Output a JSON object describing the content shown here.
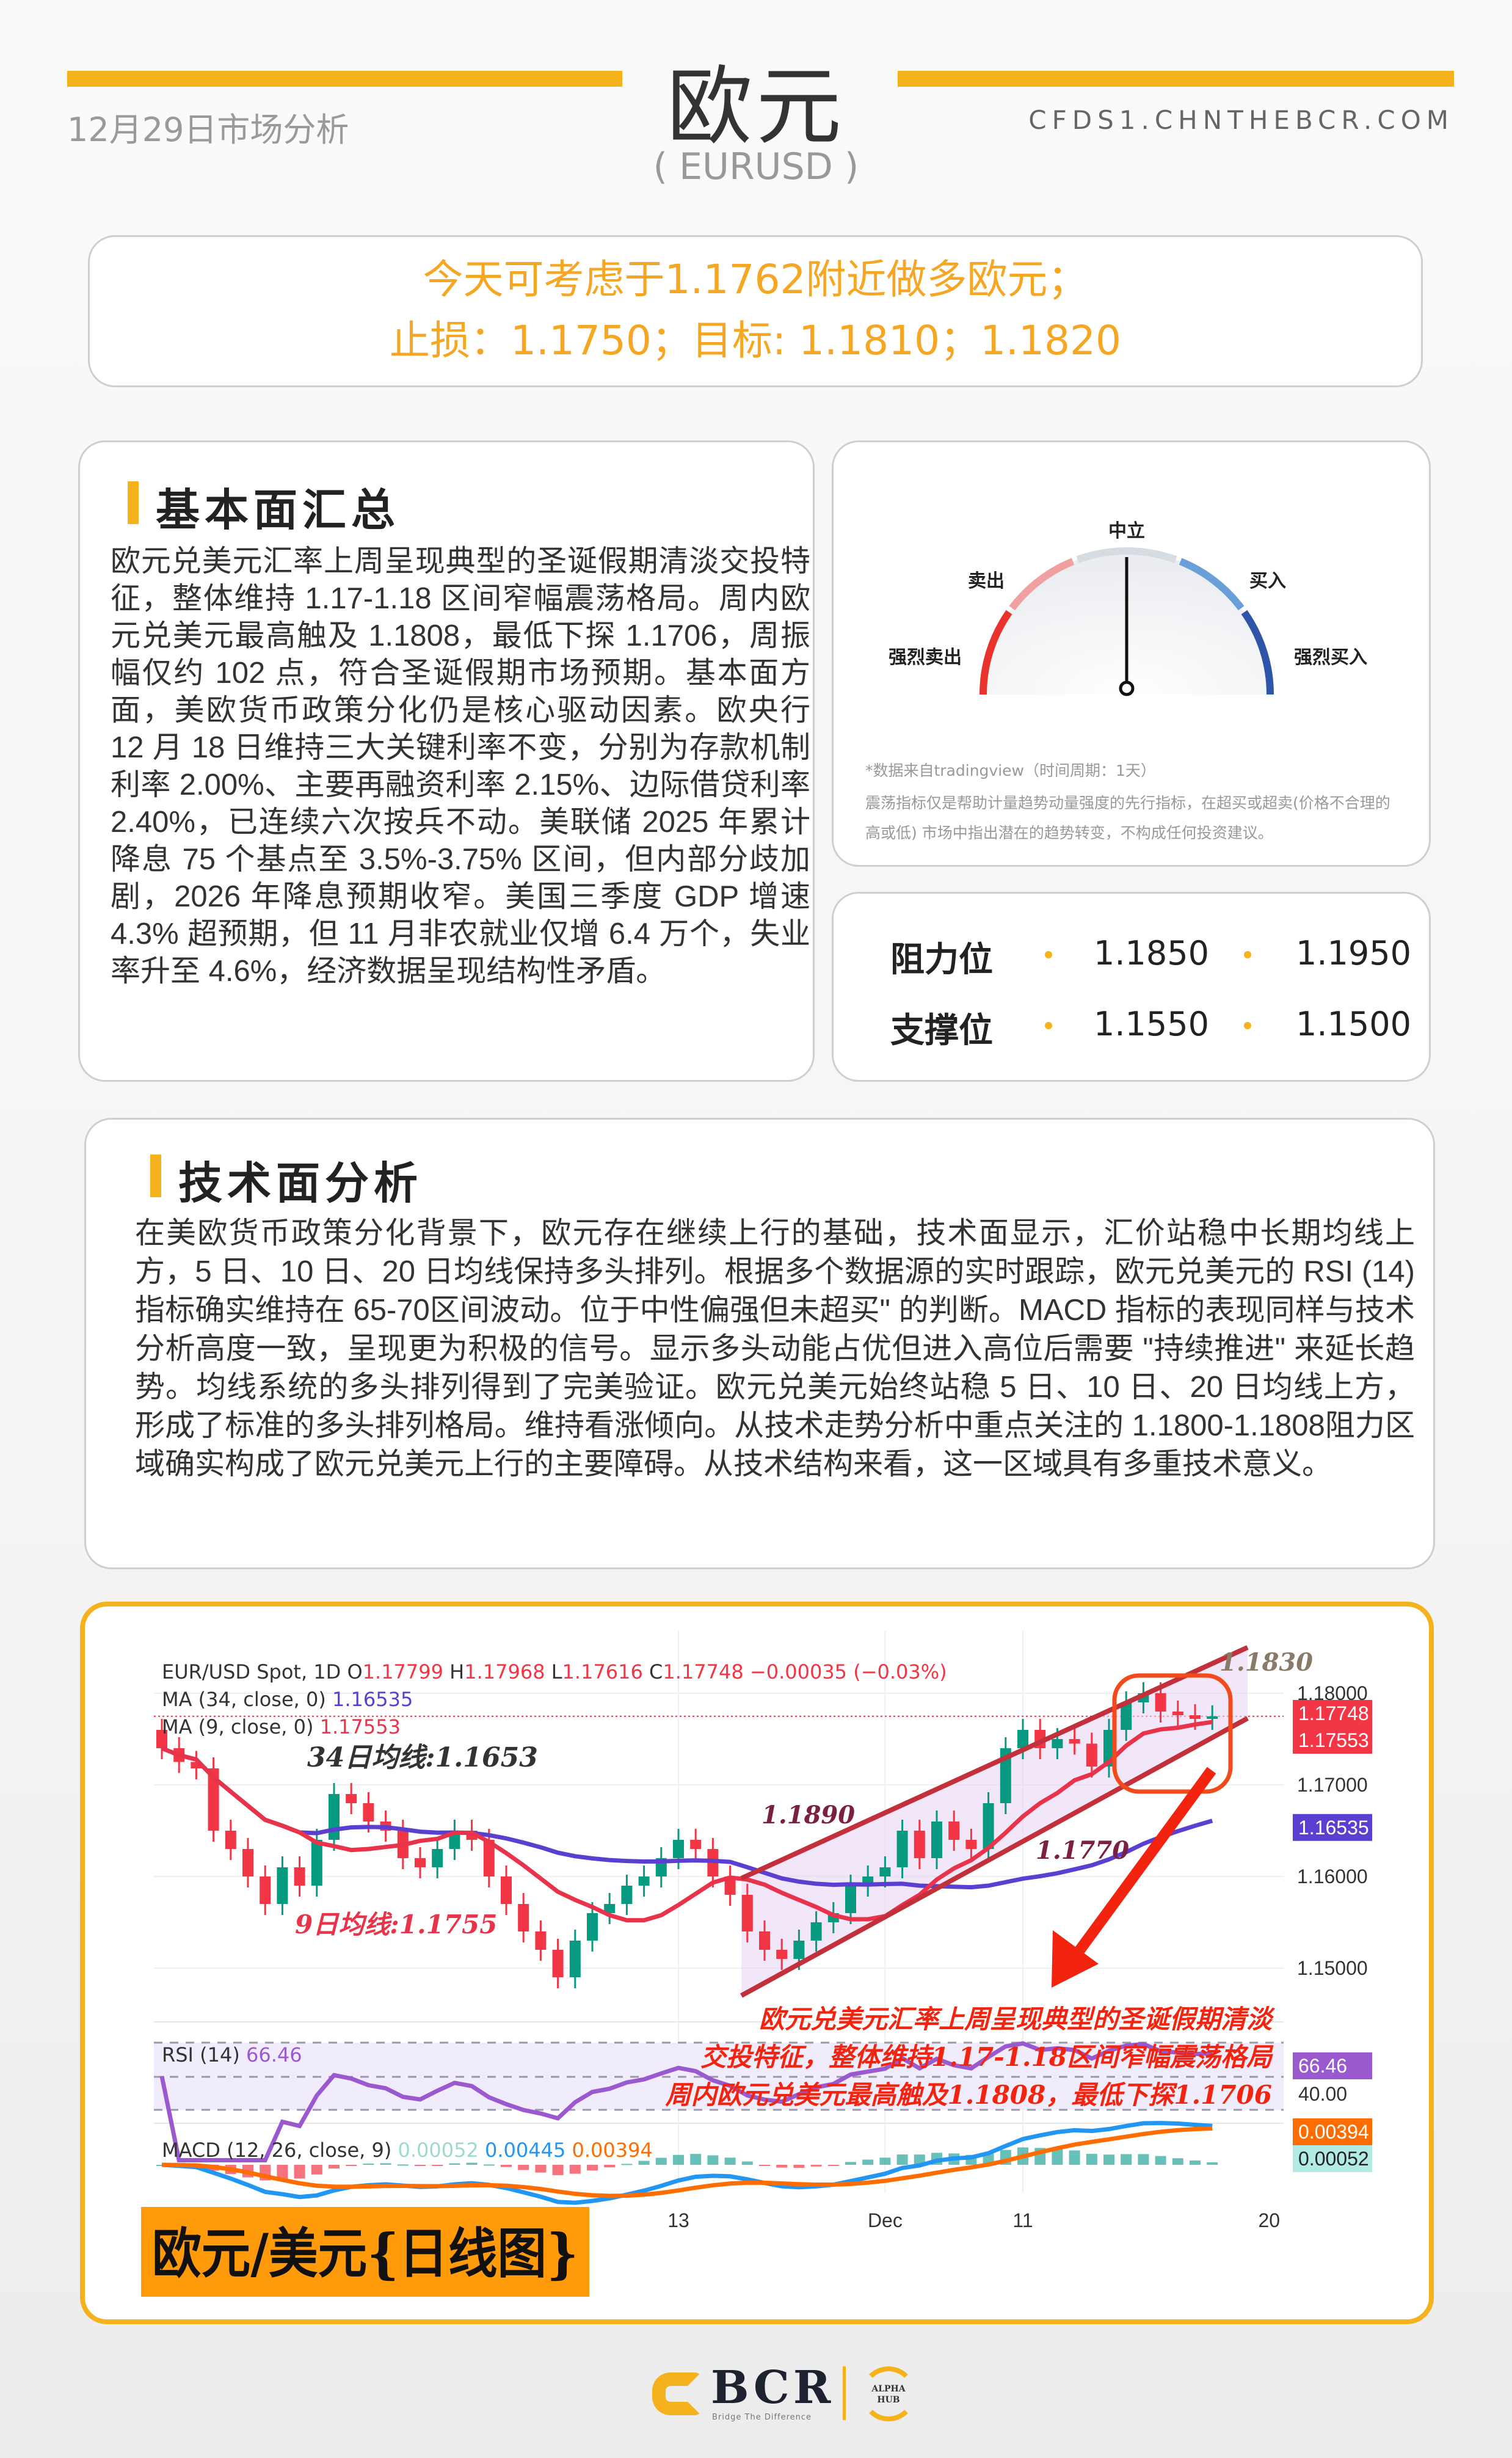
{
  "header": {
    "title": "欧元",
    "subtitle": "( EURUSD )",
    "date": "12月29日市场分析",
    "site": "CFDS1.CHNTHEBCR.COM"
  },
  "signal": {
    "line1": "今天可考虑于1.1762附近做多欧元；",
    "line2": "止损：1.1750；目标: 1.1810；1.1820"
  },
  "fundamentals": {
    "title": "基本面汇总",
    "body": "欧元兑美元汇率上周呈现典型的圣诞假期清淡交投特征，整体维持 1.17-1.18 区间窄幅震荡格局。周内欧元兑美元最高触及 1.1808，最低下探 1.1706，周振幅仅约 102 点，符合圣诞假期市场预期。基本面方面，美欧货币政策分化仍是核心驱动因素。欧央行 12 月 18 日维持三大关键利率不变，分别为存款机制利率 2.00%、主要再融资利率 2.15%、边际借贷利率 2.40%，已连续六次按兵不动。美联储 2025 年累计降息 75 个基点至 3.5%-3.75% 区间，但内部分歧加剧，2026 年降息预期收窄。美国三季度 GDP 增速 4.3% 超预期，但 11 月非农就业仅增 6.4 万个，失业率升至 4.6%，经济数据呈现结构性矛盾。"
  },
  "gauge": {
    "labels": {
      "neutral": "中立",
      "sell": "卖出",
      "buy": "买入",
      "strong_sell": "强烈卖出",
      "strong_buy": "强烈买入"
    },
    "reading": "中立",
    "needle_value": 0,
    "colors": {
      "strong_sell": "#e8322b",
      "sell": "#f0a0a0",
      "neutral": "#d7dbe2",
      "buy": "#6a9fd8",
      "strong_buy": "#2f55a8"
    },
    "source": "*数据来自tradingview（时间周期：1天）",
    "disclaimer": "震荡指标仅是帮助计量趋势动量强度的先行指标，在超买或超卖(价格不合理的高或低) 市场中指出潜在的趋势转变，不构成任何投资建议。"
  },
  "levels": {
    "resistance_label": "阻力位",
    "resistance": [
      "1.1850",
      "1.1950"
    ],
    "support_label": "支撑位",
    "support": [
      "1.1550",
      "1.1500"
    ]
  },
  "technical": {
    "title": "技术面分析",
    "body": "在美欧货币政策分化背景下，欧元存在继续上行的基础，技术面显示，汇价站稳中长期均线上方，5 日、10 日、20 日均线保持多头排列。根据多个数据源的实时跟踪，欧元兑美元的 RSI (14) 指标确实维持在 65-70区间波动。位于中性偏强但未超买\" 的判断。MACD 指标的表现同样与技术分析高度一致，呈现更为积极的信号。显示多头动能占优但进入高位后需要 \"持续推进\" 来延长趋势。均线系统的多头排列得到了完美验证。欧元兑美元始终站稳 5 日、10 日、20 日均线上方，形成了标准的多头排列格局。维持看涨倾向。从技术走势分析中重点关注的 1.1800-1.1808阻力区域确实构成了欧元兑美元上行的主要障碍。从技术结构来看，这一区域具有多重技术意义。"
  },
  "chart_data": {
    "type": "candlestick",
    "symbol_line": {
      "name": "EUR/USD Spot, 1D",
      "o_label": "O",
      "o": "1.17799",
      "h_label": "H",
      "h": "1.17968",
      "l_label": "L",
      "l": "1.17616",
      "c_label": "C",
      "c": "1.17748",
      "change": "−0.00035 (−0.03%)"
    },
    "ma34": {
      "label": "MA (34, close, 0)",
      "value": "1.16535",
      "color": "#5b3fd1"
    },
    "ma9": {
      "label": "MA (9, close, 0)",
      "value": "1.17553",
      "color": "#e8334a"
    },
    "closes": [
      1.174,
      1.1725,
      1.1718,
      1.165,
      1.163,
      1.16,
      1.157,
      1.161,
      1.159,
      1.164,
      1.169,
      1.168,
      1.166,
      1.165,
      1.162,
      1.161,
      1.163,
      1.165,
      1.164,
      1.16,
      1.157,
      1.154,
      1.152,
      1.149,
      1.153,
      1.156,
      1.157,
      1.159,
      1.16,
      1.162,
      1.164,
      1.163,
      1.16,
      1.158,
      1.154,
      1.152,
      1.151,
      1.153,
      1.155,
      1.156,
      1.159,
      1.16,
      1.161,
      1.165,
      1.162,
      1.166,
      1.164,
      1.163,
      1.168,
      1.174,
      1.176,
      1.174,
      1.175,
      1.1745,
      1.172,
      1.176,
      1.179,
      1.18,
      1.178,
      1.1776,
      1.1772,
      1.17748
    ],
    "ylim": [
      1.145,
      1.184
    ],
    "y_ticks": [
      "1.18000",
      "1.17000",
      "1.16000",
      "1.15000"
    ],
    "price_tags": [
      {
        "value": "1.17748",
        "color": "#f23645"
      },
      {
        "value": "1.17553",
        "color": "#f23645"
      },
      {
        "value": "1.16535",
        "color": "#5b3fd1"
      }
    ],
    "x_ticks": [
      {
        "label": "13",
        "index": 30
      },
      {
        "label": "Dec",
        "index": 42
      },
      {
        "label": "11",
        "index": 50
      },
      {
        "label": "20",
        "index": 64.3
      }
    ],
    "rsi": {
      "label": "RSI (14)",
      "value": "66.46",
      "axis_label": "40.00",
      "levels": [
        70,
        50,
        30
      ]
    },
    "macd": {
      "label": "MACD (12, 26, close, 9)",
      "hist": "0.00052",
      "macd": "0.00445",
      "signal": "0.00394"
    },
    "annotations": {
      "ma34_note": "34日均线:1.1653",
      "ma9_note": "9日均线:1.1755",
      "channel_upper": "1.1890",
      "channel_lower": "1.1770",
      "top_note": "1.1830",
      "caption": [
        "欧元兑美元汇率上周呈现典型的圣诞假期清淡",
        "交投特征，整体维持1.17-1.18区间窄幅震荡格局",
        "周内欧元兑美元最高触及1.1808，最低下探1.1706"
      ],
      "chart_label": "欧元/美元{日线图}"
    }
  },
  "footer": {
    "brand": "BCR",
    "tagline": "Bridge The Difference",
    "partner": "ALPHA HUB"
  }
}
